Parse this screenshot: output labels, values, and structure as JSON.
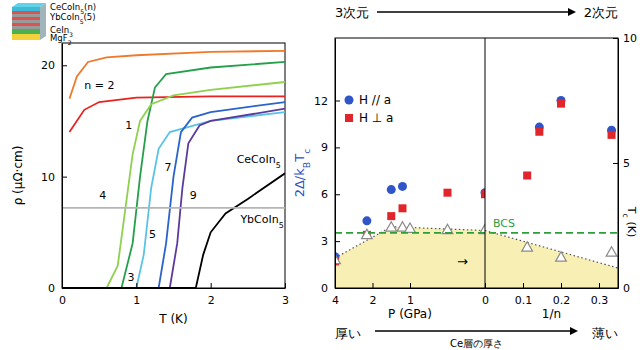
{
  "chart_data": [
    {
      "type": "line",
      "xlabel": [
        "T (K)"
      ],
      "ylabel": [
        "ρ (μΩ·cm)"
      ],
      "xlim": [
        0,
        3
      ],
      "xticks": [
        0,
        1,
        2,
        3
      ],
      "ylim": [
        0,
        22
      ],
      "yticks": [
        0,
        10,
        20
      ],
      "series": [
        {
          "color": "#e8231f",
          "x": [
            0.1,
            0.3,
            0.5,
            1,
            2,
            3
          ],
          "values": [
            14,
            16,
            16.7,
            17.1,
            17.2,
            17.2
          ]
        },
        {
          "color": "#f07a2b",
          "x": [
            0.1,
            0.2,
            0.35,
            0.6,
            1,
            2,
            3
          ],
          "values": [
            17,
            19,
            20.3,
            20.7,
            20.9,
            21.2,
            21.3
          ]
        },
        {
          "color": "#25a04a",
          "x": [
            0,
            0.8,
            0.95,
            1.05,
            1.15,
            1.25,
            1.4,
            2,
            3
          ],
          "values": [
            0,
            0,
            4,
            10,
            15,
            18,
            19.2,
            19.8,
            20.3
          ]
        },
        {
          "color": "#8fd14f",
          "x": [
            0,
            0.6,
            0.75,
            0.85,
            0.95,
            1.05,
            1.2,
            1.5,
            2,
            3
          ],
          "values": [
            0,
            0,
            2,
            7,
            12,
            15,
            16.5,
            17.3,
            17.8,
            18.5
          ]
        },
        {
          "color": "#59c3e6",
          "x": [
            0,
            1,
            1.1,
            1.2,
            1.3,
            1.45,
            2,
            3
          ],
          "values": [
            0,
            0,
            3,
            9,
            12.5,
            14,
            15,
            15.8
          ]
        },
        {
          "color": "#2a63c9",
          "x": [
            0,
            1.3,
            1.4,
            1.5,
            1.6,
            1.75,
            2,
            3
          ],
          "values": [
            0,
            0,
            4,
            10,
            14,
            15.3,
            15.8,
            16.7
          ]
        },
        {
          "color": "#5b3a9e",
          "x": [
            0,
            1.45,
            1.55,
            1.62,
            1.7,
            1.85,
            2,
            3
          ],
          "values": [
            0,
            0,
            4,
            9,
            13,
            14.6,
            15,
            16.1
          ]
        },
        {
          "color": "#000000",
          "x": [
            0,
            1.8,
            1.9,
            2,
            2.2,
            2.5,
            3
          ],
          "values": [
            0,
            0,
            3,
            5,
            6.7,
            8,
            10.3
          ]
        },
        {
          "color": "#b5b5b5",
          "x": [
            0,
            3
          ],
          "values": [
            7.2,
            7.2
          ]
        }
      ],
      "annotations": [
        {
          "text": [
            "n = 2"
          ],
          "x": 0.3,
          "y": 17.9
        },
        {
          "text": [
            "1"
          ],
          "x": 0.85,
          "y": 14.3
        },
        {
          "text": [
            "4"
          ],
          "x": 0.5,
          "y": 8
        },
        {
          "text": [
            "3"
          ],
          "x": 0.88,
          "y": 0.6
        },
        {
          "text": [
            "5"
          ],
          "x": 1.17,
          "y": 4.5
        },
        {
          "text": [
            "7"
          ],
          "x": 1.38,
          "y": 10.5
        },
        {
          "text": [
            "9"
          ],
          "x": 1.72,
          "y": 8
        },
        {
          "text": [
            "CeCoIn",
            "5"
          ],
          "x": 2.35,
          "y": 11.2
        },
        {
          "text": [
            "YbCoIn",
            "5"
          ],
          "x": 2.4,
          "y": 5.8
        }
      ],
      "inset": {
        "labels": [
          [
            "CeCoIn",
            "5",
            "(n)"
          ],
          [
            "YbCoIn",
            "5",
            "(5)"
          ],
          [
            "CeIn",
            "3"
          ],
          [
            "MgF",
            "2"
          ]
        ]
      }
    },
    {
      "type": "scatter",
      "top_labels": [
        "3次元",
        "2次元"
      ],
      "bottom_labels": [
        "厚い",
        "薄い"
      ],
      "bottom_title": "Ce層の厚さ",
      "ylabel": [
        "2Δ/k",
        "B",
        "T",
        "c"
      ],
      "y2label": [
        "T",
        "c",
        " (K)"
      ],
      "ylim": [
        0,
        16
      ],
      "yticks": [
        0,
        3,
        6,
        9,
        12
      ],
      "y2lim": [
        0,
        10
      ],
      "y2ticks": [
        0,
        5,
        10
      ],
      "legend": "upper left",
      "panels": [
        {
          "xlabel": [
            "P (GPa)"
          ],
          "xlim": [
            4,
            0
          ],
          "xticks": [
            4,
            2,
            1,
            0
          ]
        },
        {
          "xlabel": [
            "1/n"
          ],
          "xlim": [
            0,
            0.35
          ],
          "xticks": [
            0.1,
            0.2,
            0.3
          ]
        }
      ],
      "series": [
        {
          "type": "area",
          "axis": "y2",
          "line_style": "dotted",
          "color": "#f8efb4",
          "x": [
            [
              4,
              1.5,
              0
            ],
            [
              0,
              0.35
            ]
          ],
          "values": [
            [
              1.2,
              2.45,
              2.3
            ],
            [
              2.3,
              0.8
            ]
          ]
        },
        {
          "name": "H // a",
          "color": "#2f55c9",
          "marker": "circle",
          "x": [
            [
              4,
              2.3,
              1.5,
              1.2,
              0
            ],
            [
              0.143,
              0.2,
              0.333
            ]
          ],
          "values": [
            [
              2.0,
              4.3,
              6.3,
              6.5,
              6.1
            ],
            [
              10.3,
              12.0,
              10.1
            ]
          ]
        },
        {
          "name": "H ⊥ a",
          "color": "#e0262a",
          "marker": "square",
          "x": [
            [
              4,
              2.3,
              1.5,
              1.2,
              0.5,
              0
            ],
            [
              0.111,
              0.143,
              0.2,
              0.333
            ]
          ],
          "values": [
            [
              1.7,
              3.4,
              4.6,
              5.1,
              6.1,
              6.0
            ],
            [
              7.2,
              10.0,
              11.8,
              9.8
            ]
          ]
        },
        {
          "axis": "y2",
          "marker": "triangle",
          "color": "#8a8a8a",
          "x": [
            [
              4,
              2.3,
              1.5,
              1.2,
              1,
              0.5,
              0
            ],
            [
              0.111,
              0.2,
              0.333
            ]
          ],
          "values": [
            [
              1.1,
              2.1,
              2.4,
              2.4,
              2.35,
              2.3,
              2.3
            ],
            [
              1.6,
              1.2,
              1.4
            ]
          ]
        }
      ],
      "reference_lines": [
        {
          "value": 3.53,
          "label": "BCS",
          "color": "#2e9e3a",
          "line_style": "dashed"
        }
      ],
      "annotations": [
        {
          "text": [
            "→"
          ],
          "x": 0.3,
          "y": 0.9
        }
      ]
    }
  ]
}
